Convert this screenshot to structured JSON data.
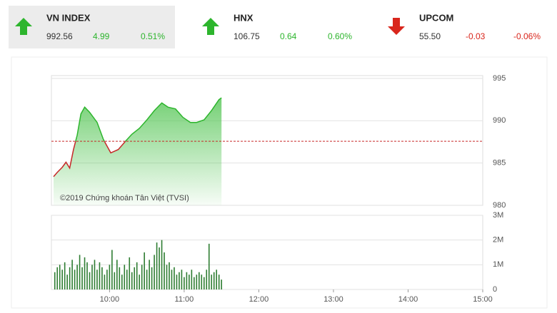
{
  "tiles": [
    {
      "name": "VN INDEX",
      "value": "992.56",
      "change": "4.99",
      "percent": "0.51%",
      "direction": "up",
      "color": "#2db52d"
    },
    {
      "name": "HNX",
      "value": "106.75",
      "change": "0.64",
      "percent": "0.60%",
      "direction": "up",
      "color": "#2db52d"
    },
    {
      "name": "UPCOM",
      "value": "55.50",
      "change": "-0.03",
      "percent": "-0.06%",
      "direction": "down",
      "color": "#d9261c"
    }
  ],
  "chart_data": [
    {
      "type": "line",
      "annotation": "©2019 Chứng khoán Tân Việt (TVSI)",
      "x": [
        555,
        558,
        562,
        565,
        568,
        571,
        574,
        577,
        580,
        584,
        590,
        595,
        601,
        607,
        613,
        618,
        624,
        630,
        636,
        642,
        647,
        653,
        659,
        665,
        670,
        676,
        682,
        688,
        690
      ],
      "values": [
        983.4,
        983.9,
        984.5,
        985.1,
        984.4,
        986.6,
        988.3,
        990.8,
        991.6,
        991.0,
        989.8,
        987.8,
        986.2,
        986.6,
        987.6,
        988.4,
        989.1,
        990.1,
        991.2,
        992.1,
        991.6,
        991.4,
        990.4,
        989.8,
        989.8,
        990.1,
        991.2,
        992.5,
        992.7
      ],
      "reference": 987.57,
      "color": "#2db52d",
      "below_color": "#c62828",
      "reference_color": "#c62828",
      "xlim": [
        555,
        900
      ],
      "ylim": [
        980,
        995
      ],
      "yticks": [
        980,
        985,
        990,
        995
      ],
      "grid": true
    },
    {
      "type": "bar",
      "color": "#2e7d32",
      "x": [
        556,
        558,
        560,
        562,
        564,
        566,
        568,
        570,
        572,
        574,
        576,
        578,
        580,
        582,
        584,
        586,
        588,
        590,
        592,
        594,
        596,
        598,
        600,
        602,
        604,
        606,
        608,
        610,
        612,
        614,
        616,
        618,
        620,
        622,
        624,
        626,
        628,
        630,
        632,
        634,
        636,
        638,
        640,
        642,
        644,
        646,
        648,
        650,
        652,
        654,
        656,
        658,
        660,
        662,
        664,
        666,
        668,
        670,
        672,
        674,
        676,
        678,
        680,
        682,
        684,
        686,
        688,
        690
      ],
      "values": [
        0.7,
        0.9,
        1.0,
        0.8,
        1.1,
        0.6,
        0.9,
        1.2,
        0.8,
        1.0,
        1.4,
        0.9,
        1.3,
        1.1,
        0.7,
        1.0,
        1.2,
        0.8,
        1.1,
        0.9,
        0.6,
        0.8,
        1.0,
        1.6,
        0.7,
        1.2,
        0.9,
        0.6,
        1.0,
        0.8,
        1.3,
        0.7,
        0.9,
        1.1,
        0.6,
        1.0,
        1.5,
        0.8,
        1.2,
        0.9,
        1.4,
        1.9,
        1.7,
        2.0,
        1.5,
        1.0,
        1.1,
        0.8,
        0.9,
        0.6,
        0.7,
        0.8,
        0.5,
        0.7,
        0.6,
        0.8,
        0.5,
        0.6,
        0.7,
        0.6,
        0.5,
        0.8,
        1.85,
        0.6,
        0.7,
        0.8,
        0.6,
        0.4
      ],
      "xlim": [
        555,
        900
      ],
      "xticks": [
        {
          "value": 600,
          "label": "10:00"
        },
        {
          "value": 660,
          "label": "11:00"
        },
        {
          "value": 720,
          "label": "12:00"
        },
        {
          "value": 780,
          "label": "13:00"
        },
        {
          "value": 840,
          "label": "14:00"
        },
        {
          "value": 900,
          "label": "15:00"
        }
      ],
      "ylim": [
        0,
        3
      ],
      "yticks": [
        0,
        {
          "value": 1,
          "label": "1M"
        },
        {
          "value": 2,
          "label": "2M"
        },
        {
          "value": 3,
          "label": "3M"
        }
      ],
      "grid": true
    }
  ]
}
